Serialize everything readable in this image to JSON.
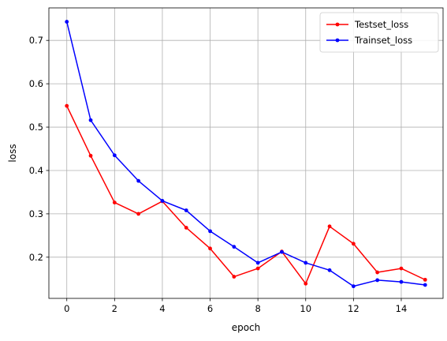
{
  "chart_data": {
    "type": "line",
    "title": "",
    "xlabel": "epoch",
    "ylabel": "loss",
    "xlim": [
      -0.75,
      15.75
    ],
    "ylim": [
      0.105,
      0.775
    ],
    "xticks": [
      0,
      2,
      4,
      6,
      8,
      10,
      12,
      14
    ],
    "yticks": [
      0.2,
      0.3,
      0.4,
      0.5,
      0.6,
      0.7
    ],
    "xtick_labels": [
      "0",
      "2",
      "4",
      "6",
      "8",
      "10",
      "12",
      "14"
    ],
    "ytick_labels": [
      "0.2",
      "0.3",
      "0.4",
      "0.5",
      "0.6",
      "0.7"
    ],
    "grid": true,
    "legend_position": "top-right",
    "x": [
      0,
      1,
      2,
      3,
      4,
      5,
      6,
      7,
      8,
      9,
      10,
      11,
      12,
      13,
      14,
      15
    ],
    "series": [
      {
        "name": "Testset_loss",
        "color": "#ff0000",
        "values": [
          0.549,
          0.434,
          0.326,
          0.3,
          0.329,
          0.268,
          0.22,
          0.155,
          0.174,
          0.213,
          0.139,
          0.271,
          0.231,
          0.165,
          0.174,
          0.148
        ]
      },
      {
        "name": "Trainset_loss",
        "color": "#0000ff",
        "values": [
          0.743,
          0.516,
          0.435,
          0.376,
          0.33,
          0.308,
          0.26,
          0.224,
          0.187,
          0.212,
          0.187,
          0.17,
          0.133,
          0.147,
          0.143,
          0.136
        ]
      }
    ]
  }
}
